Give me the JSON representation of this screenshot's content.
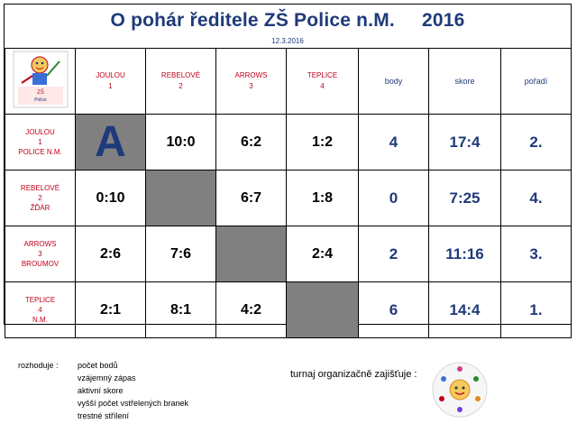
{
  "title": "O pohár ředitele ZŠ Police n.M.",
  "year": "2016",
  "date": "12.3.2016",
  "teams_header": [
    {
      "name": "JOULOU",
      "num": "1"
    },
    {
      "name": "REBELOVÉ",
      "num": "2"
    },
    {
      "name": "ARROWS",
      "num": "3"
    },
    {
      "name": "TEPLICE",
      "num": "4"
    }
  ],
  "stat_headers": {
    "points": "body",
    "score": "skore",
    "rank": "pořadí"
  },
  "rows": [
    {
      "name": "JOULOU",
      "num": "1",
      "town": "POLICE N.M.",
      "cells": [
        "A",
        "10:0",
        "6:2",
        "1:2"
      ],
      "points": "4",
      "score": "17:4",
      "rank": "2."
    },
    {
      "name": "REBELOVÉ",
      "num": "2",
      "town": "ŽĎÁR",
      "cells": [
        "0:10",
        "",
        "6:7",
        "1:8"
      ],
      "points": "0",
      "score": "7:25",
      "rank": "4."
    },
    {
      "name": "ARROWS",
      "num": "3",
      "town": "BROUMOV",
      "cells": [
        "2:6",
        "7:6",
        "",
        "2:4"
      ],
      "points": "2",
      "score": "11:16",
      "rank": "3."
    },
    {
      "name": "TEPLICE",
      "num": "4",
      "town": "N.M.",
      "cells": [
        "2:1",
        "8:1",
        "4:2",
        ""
      ],
      "points": "6",
      "score": "14:4",
      "rank": "1."
    }
  ],
  "legend": {
    "label": "rozhoduje :",
    "items": [
      "počet bodů",
      "vzájemný zápas",
      "aktivní skore",
      "vyšší počet vstřelených branek",
      "trestné střílení"
    ]
  },
  "organizer_label": "turnaj organizačně zajišťuje :",
  "logo_icon": "school-logo-icon",
  "org_logo_icon": "organizer-logo-icon"
}
